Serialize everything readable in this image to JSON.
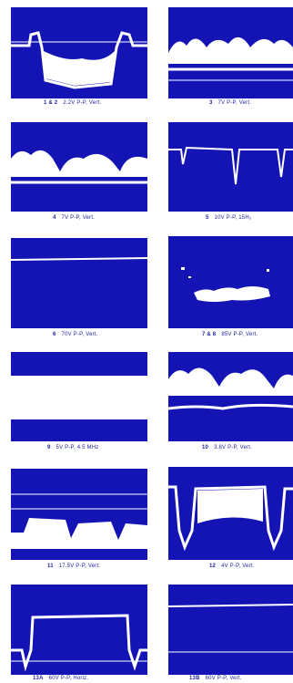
{
  "panels": [
    {
      "number": "1 & 2",
      "spec": "2.2V P-P, Vert."
    },
    {
      "number": "3",
      "spec": "7V P-P, Vert."
    },
    {
      "number": "4",
      "spec": "7V P-P, Vert."
    },
    {
      "number": "5",
      "spec": "10V P-P, 15H₂"
    },
    {
      "number": "6",
      "spec": "70V P-P, Vert."
    },
    {
      "number": "7 & 8",
      "spec": "85V P-P, Vert."
    },
    {
      "number": "9",
      "spec": "5V P-P, 4.5 MHz"
    },
    {
      "number": "10",
      "spec": "3.8V P-P, Vert."
    },
    {
      "number": "11",
      "spec": "17.5V P-P, Vert."
    },
    {
      "number": "12",
      "spec": "4V P-P, Vert."
    },
    {
      "number": "13A",
      "spec": "60V P-P, Horiz."
    },
    {
      "number": "13B",
      "spec": "60V P-P, Vert."
    }
  ]
}
